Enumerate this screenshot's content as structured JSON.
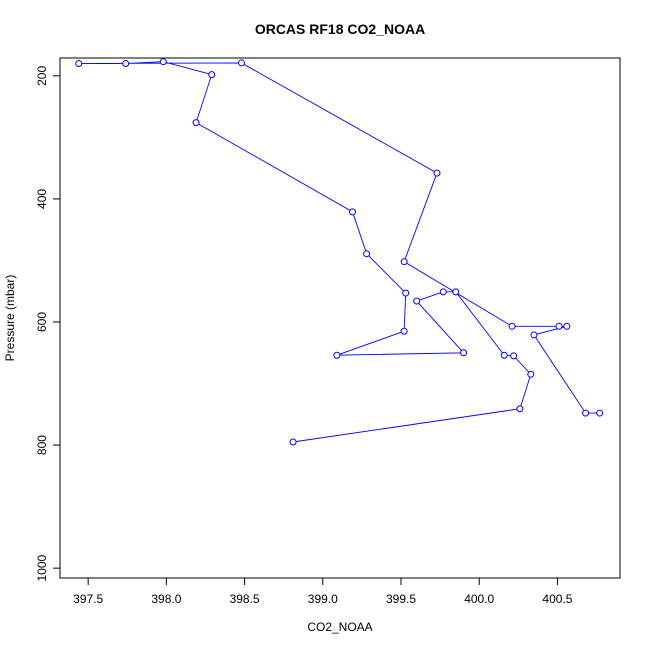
{
  "chart_data": {
    "type": "line",
    "title": "ORCAS RF18 CO2_NOAA",
    "x_label": "CO2_NOAA",
    "y_label": "Pressure (mbar)",
    "x": [
      398.81,
      400.26,
      400.33,
      400.22,
      400.16,
      399.85,
      399.77,
      399.6,
      399.9,
      399.09,
      399.52,
      399.53,
      399.28,
      399.19,
      398.19,
      398.29,
      397.98,
      397.74,
      397.44,
      398.48,
      399.73,
      399.52,
      400.21,
      400.51,
      400.56,
      400.35,
      400.68,
      400.77
    ],
    "values": [
      795,
      741,
      685,
      655,
      654,
      551,
      551,
      566,
      650,
      654,
      615,
      553,
      489,
      421,
      276,
      198,
      177,
      180,
      180,
      179,
      358,
      502,
      607,
      607,
      607,
      621,
      748,
      748
    ],
    "color": "#0000ff",
    "xlim": [
      397.32,
      400.9
    ],
    "xticks": [
      397.5,
      {
        "value": 398,
        "label": "398.0"
      },
      398.5,
      {
        "value": 399,
        "label": "399.0"
      },
      399.5,
      {
        "value": 400,
        "label": "400.0"
      },
      400.5
    ],
    "ylim": [
      1016,
      171
    ],
    "yticks": [
      200,
      400,
      600,
      800,
      1000
    ]
  }
}
